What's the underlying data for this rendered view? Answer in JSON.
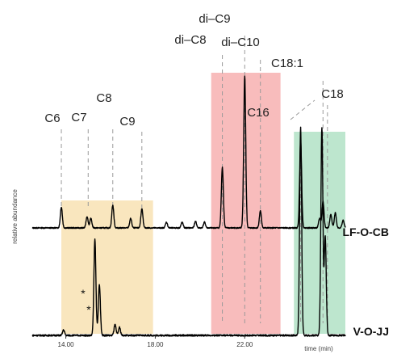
{
  "chart_data": {
    "type": "line",
    "title": "",
    "xlabel": "time (min)",
    "ylabel": "relative abundance",
    "xlim": [
      12.5,
      26.5
    ],
    "x_ticks": [
      {
        "value": 14,
        "label": "14.00"
      },
      {
        "value": 18,
        "label": "18.00"
      },
      {
        "value": 22,
        "label": "22.00"
      }
    ],
    "grid": false,
    "legend": "none",
    "highlight_regions": [
      {
        "x": [
          13.8,
          17.9
        ],
        "color": "#f9e6be"
      },
      {
        "x": [
          20.5,
          23.6
        ],
        "color": "#f8bcbc"
      },
      {
        "x": [
          24.2,
          26.5
        ],
        "color": "#bde6ce"
      }
    ],
    "peak_markers": [
      {
        "label": "C6",
        "x": 13.8
      },
      {
        "label": "C7",
        "x": 15.0
      },
      {
        "label": "C8",
        "x": 16.1
      },
      {
        "label": "C9",
        "x": 17.4
      },
      {
        "label": "di–C8",
        "x": 21.0
      },
      {
        "label": "di–C9",
        "x": 22.0
      },
      {
        "label": "di–C10",
        "x": 22.7
      },
      {
        "label": "C16",
        "x": 24.5
      },
      {
        "label": "C18:1",
        "x": 25.5
      },
      {
        "label": "C18",
        "x": 25.7
      }
    ],
    "series": [
      {
        "name": "LF-O-CB",
        "baseline": 0,
        "peaks": [
          {
            "x": 13.8,
            "y": 0.11
          },
          {
            "x": 14.95,
            "y": 0.06
          },
          {
            "x": 15.12,
            "y": 0.05
          },
          {
            "x": 16.1,
            "y": 0.12
          },
          {
            "x": 16.9,
            "y": 0.05
          },
          {
            "x": 17.4,
            "y": 0.1
          },
          {
            "x": 18.5,
            "y": 0.03
          },
          {
            "x": 19.2,
            "y": 0.03
          },
          {
            "x": 19.8,
            "y": 0.035
          },
          {
            "x": 20.2,
            "y": 0.03
          },
          {
            "x": 21.0,
            "y": 0.32
          },
          {
            "x": 22.0,
            "y": 0.8
          },
          {
            "x": 22.7,
            "y": 0.09
          },
          {
            "x": 24.5,
            "y": 0.46
          },
          {
            "x": 25.35,
            "y": 0.05
          },
          {
            "x": 25.5,
            "y": 0.14
          },
          {
            "x": 25.85,
            "y": 0.07
          },
          {
            "x": 26.05,
            "y": 0.08
          },
          {
            "x": 26.4,
            "y": 0.04
          }
        ]
      },
      {
        "name": "V-O-JJ",
        "baseline": 0,
        "peaks": [
          {
            "x": 13.9,
            "y": 0.02
          },
          {
            "x": 15.3,
            "y": 0.36
          },
          {
            "x": 15.5,
            "y": 0.19
          },
          {
            "x": 16.2,
            "y": 0.04
          },
          {
            "x": 16.4,
            "y": 0.03
          },
          {
            "x": 24.5,
            "y": 0.78
          },
          {
            "x": 25.45,
            "y": 0.78
          },
          {
            "x": 25.6,
            "y": 0.37
          }
        ]
      }
    ],
    "annotations": [
      {
        "text": "*",
        "x": 15.3,
        "series": "V-O-JJ"
      },
      {
        "text": "*",
        "x": 15.5,
        "series": "V-O-JJ"
      }
    ]
  }
}
